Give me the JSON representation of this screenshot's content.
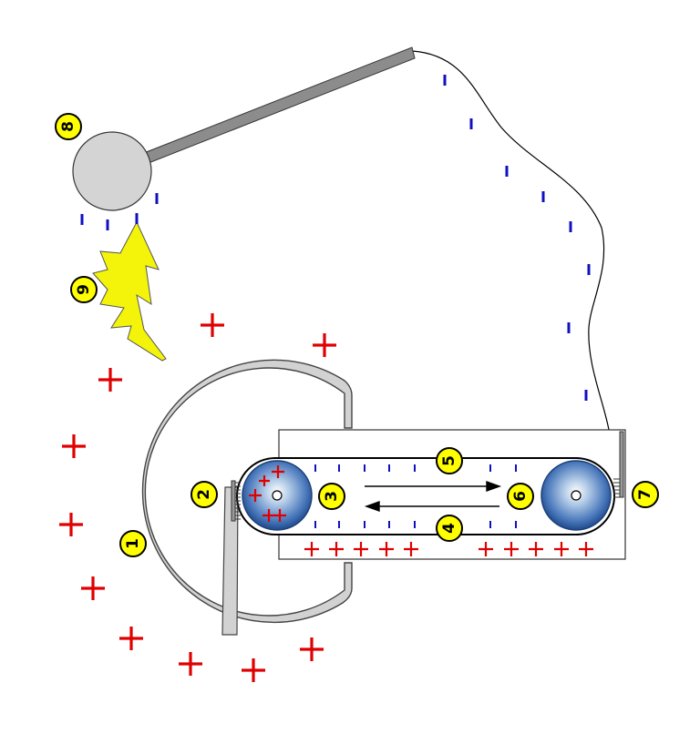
{
  "diagram": {
    "labels": [
      "1",
      "2",
      "3",
      "4",
      "5",
      "6",
      "7",
      "8",
      "9"
    ],
    "colors": {
      "positive_charge": "#e00000",
      "negative_charge": "#1010c0",
      "dome_fill": "#d4d4d4",
      "spark_fill": "#f4f40a",
      "label_fill": "#ffff00",
      "roller_blue": "#2a5ca0"
    },
    "icons": {
      "positive": "plus-sign",
      "negative": "minus-dash",
      "spark": "lightning-bolt"
    }
  }
}
